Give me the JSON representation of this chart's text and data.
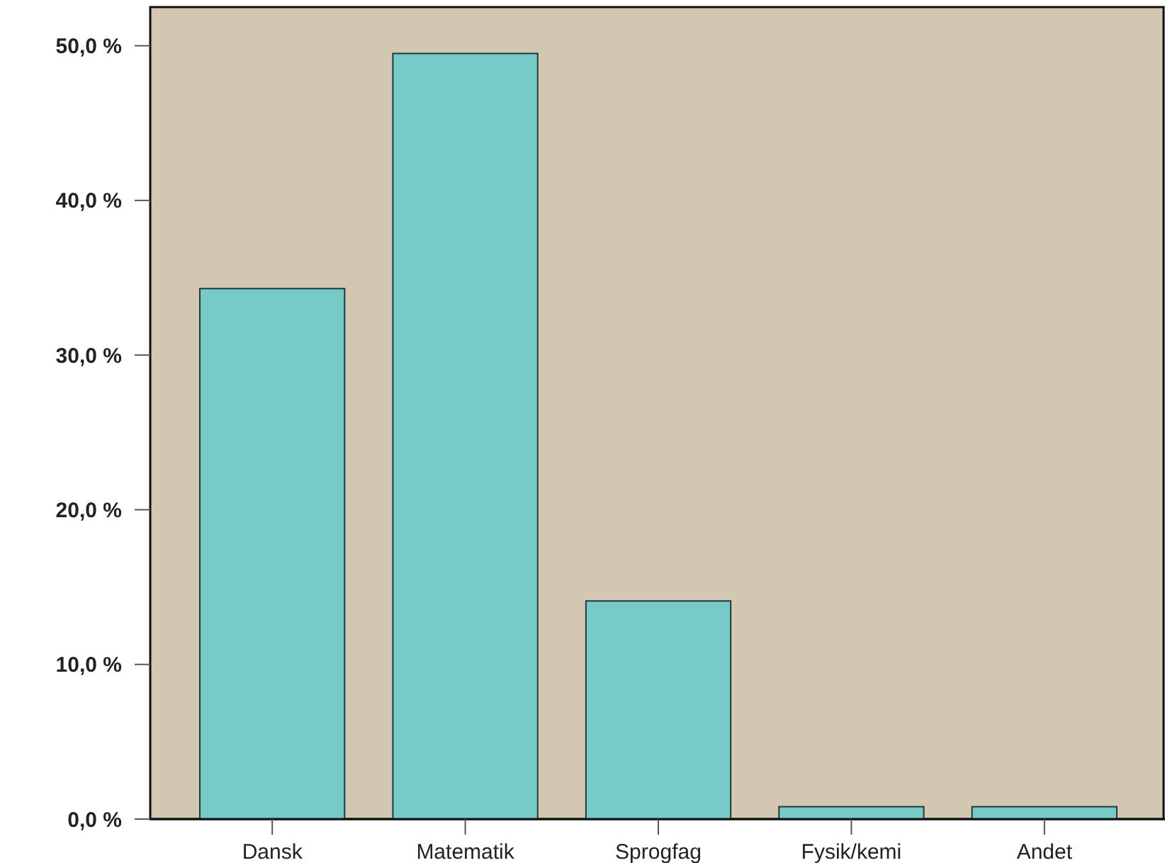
{
  "chart_data": {
    "type": "bar",
    "categories": [
      "Dansk",
      "Matematik",
      "Sprogfag",
      "Fysik/kemi",
      "Andet"
    ],
    "values": [
      34.3,
      49.5,
      14.1,
      0.8,
      0.8
    ],
    "color": "#76cbc9",
    "ylim": [
      0,
      52.5
    ],
    "yticks": [
      {
        "value": 0,
        "label": "0,0 %"
      },
      {
        "value": 10,
        "label": "10,0 %"
      },
      {
        "value": 20,
        "label": "20,0 %"
      },
      {
        "value": 30,
        "label": "30,0 %"
      },
      {
        "value": 40,
        "label": "40,0 %"
      },
      {
        "value": 50,
        "label": "50,0 %"
      }
    ],
    "grid": false
  }
}
